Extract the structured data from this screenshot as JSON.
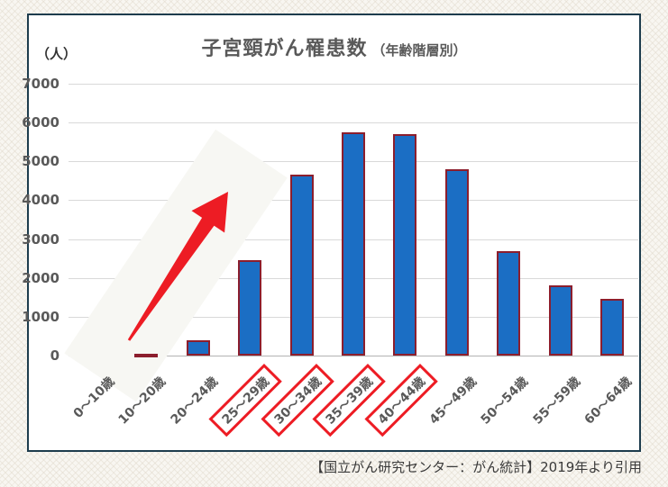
{
  "chart": {
    "title": "子宮頸がん罹患数",
    "subtitle": "（年齢階層別）",
    "unit_label": "（人）"
  },
  "chart_data": {
    "type": "bar",
    "title": "子宮頸がん罹患数（年齢階層別）",
    "ylabel": "人",
    "categories": [
      "0〜10歳",
      "10〜20歳",
      "20〜24歳",
      "25〜29歳",
      "30〜34歳",
      "35〜39歳",
      "40〜44歳",
      "45〜49歳",
      "50〜54歳",
      "55〜59歳",
      "60〜64歳"
    ],
    "values": [
      0,
      30,
      400,
      2450,
      4650,
      5750,
      5700,
      4800,
      2700,
      1800,
      1450
    ],
    "ylim": [
      0,
      7000
    ],
    "ytick_step": 1000,
    "grid": true,
    "legend_position": "none",
    "highlighted_categories": [
      "25〜29歳",
      "30〜34歳",
      "35〜39歳",
      "40〜44歳"
    ],
    "bar_color": "#1B6EC4",
    "bar_border_color": "#8C1E2D",
    "highlight_color": "#ED1C24"
  },
  "annotations": {
    "trend_arrow": {
      "shape": "up-right-arrow",
      "color": "#ED1C24",
      "from_category": "10〜20歳",
      "to_category": "25〜29歳"
    }
  },
  "footer": {
    "source": "【国立がん研究センター：がん統計】2019年より引用"
  }
}
